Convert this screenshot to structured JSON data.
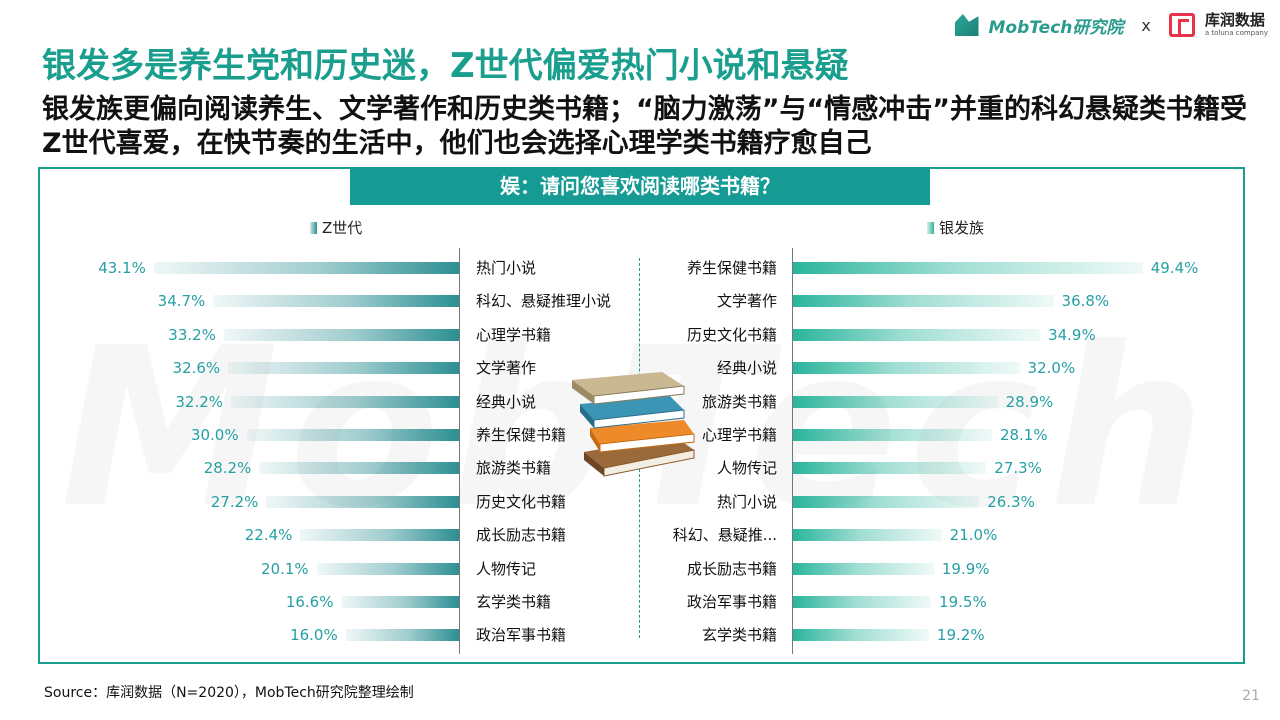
{
  "header": {
    "title": "银发多是养生党和历史迷，Z世代偏爱热门小说和悬疑",
    "subtitle": "银发族更偏向阅读养生、文学著作和历史类书籍；“脑力激荡”与“情感冲击”并重的科幻悬疑类书籍受Z世代喜爱，在快节奏的生活中，他们也会选择心理学类书籍疗愈自己"
  },
  "logos": {
    "mobtech": "MobTech研究院",
    "separator": "x",
    "partner": "库润数据",
    "partner_sub": "a toluna company"
  },
  "question": "娱：请问您喜欢阅读哪类书籍？",
  "colors": {
    "accent": "#1a9e8e",
    "left_bar": "#2c8f93",
    "right_bar": "#2ab59c",
    "value_text": "#26a0a4"
  },
  "chart_data": [
    {
      "type": "bar",
      "orientation": "horizontal",
      "series_name": "Z世代",
      "categories": [
        "热门小说",
        "科幻、悬疑推理小说",
        "心理学书籍",
        "文学著作",
        "经典小说",
        "养生保健书籍",
        "旅游类书籍",
        "历史文化书籍",
        "成长励志书籍",
        "人物传记",
        "玄学类书籍",
        "政治军事书籍"
      ],
      "values": [
        43.1,
        34.7,
        33.2,
        32.6,
        32.2,
        30.0,
        28.2,
        27.2,
        22.4,
        20.1,
        16.6,
        16.0
      ],
      "labels": [
        "43.1%",
        "34.7%",
        "33.2%",
        "32.6%",
        "32.2%",
        "30.0%",
        "28.2%",
        "27.2%",
        "22.4%",
        "20.1%",
        "16.6%",
        "16.0%"
      ],
      "unit": "%"
    },
    {
      "type": "bar",
      "orientation": "horizontal",
      "series_name": "银发族",
      "categories": [
        "养生保健书籍",
        "文学著作",
        "历史文化书籍",
        "经典小说",
        "旅游类书籍",
        "心理学书籍",
        "人物传记",
        "热门小说",
        "科幻、悬疑推...",
        "成长励志书籍",
        "政治军事书籍",
        "玄学类书籍"
      ],
      "values": [
        49.4,
        36.8,
        34.9,
        32.0,
        28.9,
        28.1,
        27.3,
        26.3,
        21.0,
        19.9,
        19.5,
        19.2
      ],
      "labels": [
        "49.4%",
        "36.8%",
        "34.9%",
        "32.0%",
        "28.9%",
        "28.1%",
        "27.3%",
        "26.3%",
        "21.0%",
        "19.9%",
        "19.5%",
        "19.2%"
      ],
      "unit": "%"
    }
  ],
  "watermark": "MobTech 袤博",
  "footer": {
    "source": "Source：库润数据（N=2020），MobTech研究院整理绘制",
    "page": "21"
  }
}
